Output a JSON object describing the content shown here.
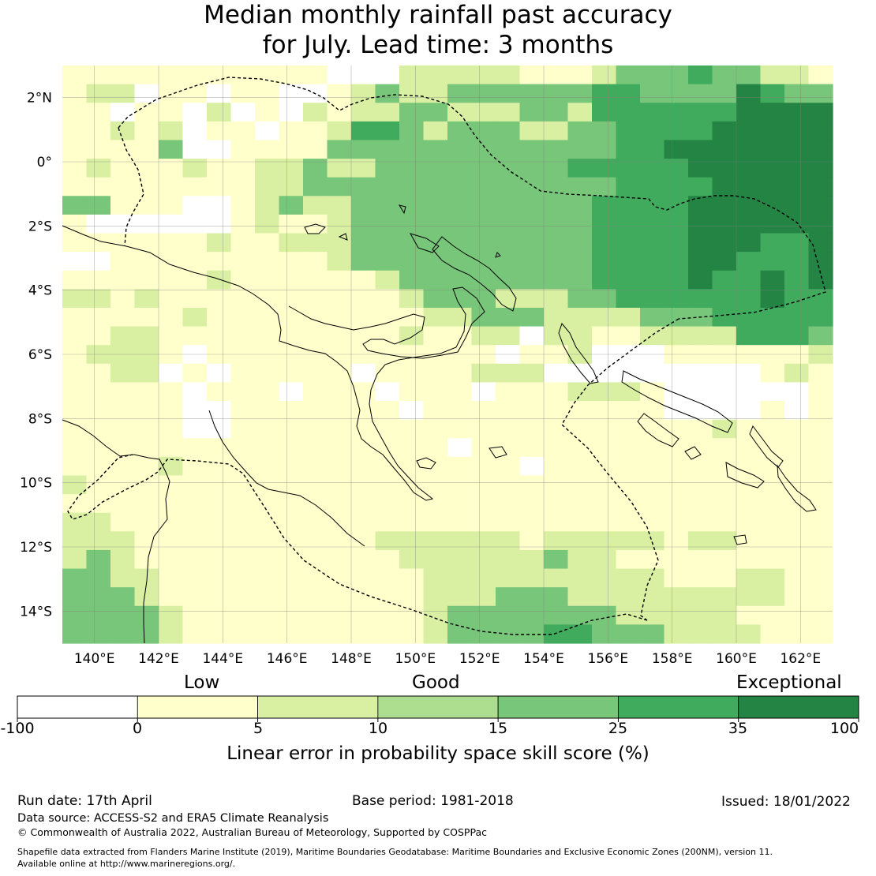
{
  "title": {
    "line1": "Median monthly rainfall past accuracy",
    "line2": "for July. Lead time: 3 months"
  },
  "map": {
    "lon_range": [
      139,
      163
    ],
    "lat_range": [
      -15,
      3
    ],
    "lon_ticks": [
      "140°E",
      "142°E",
      "144°E",
      "146°E",
      "148°E",
      "150°E",
      "152°E",
      "154°E",
      "156°E",
      "158°E",
      "160°E",
      "162°E"
    ],
    "lat_ticks": [
      "2°N",
      "0°",
      "2°S",
      "4°S",
      "6°S",
      "8°S",
      "10°S",
      "12°S",
      "14°S"
    ],
    "grid": true,
    "cell_size_deg": 0.8,
    "skill_grid": [
      "PPPPPQPPPPPWWWFFFFFPPPFGGGHGGFFP",
      "PFFWPPWPPWWPFGFFGGGGGGHHGGGGIHGG",
      "PQWQQWFWPWFQFFGGFFFGGFHHHHHHIIII",
      "PPFPFWPPWPPFHHGFGGGFFGGHHHHIIIII",
      "PQPPGWWPPPPGGGGGGGGGGGGHHIIIIIII",
      "QFPPQFPPFFGFFGGGGGGGGHHHHHIIIIII",
      "PPPPPPPQFFGGGGGGGGGGGGGHHHHIIIII",
      "GGPPPWWPFGFFGGGGGGGGGGHHHHIIIIII",
      "PWWWWWWPFPPFGGGGGGGGGGHHHHIIIIII",
      "QQQQQPFPPFFFGGGGGGGGGGHHHHIIIHHI",
      "WWQQQPPQQPPFGGGGGGGGGGHHHHIIHHHI",
      "QQPPQPFPPPPPPFGGGGGGGGHHHHIHHIHI",
      "FFPFPPPQPQPQPQFGGGFFFGGHHHHHHIHH",
      "PPPPPFPQPPPPPPPFFGGGFFFFGGGHHHHH",
      "PPFFPPPPPPPPPPFPPFFWFFPPFFFFHHHG",
      "PFFFPWPPPQPPPPPPPPWPPFWWWPQPPPPF",
      "PPFFWPWPPPPPWPPPPFFFWWWWWWWWWPFP",
      "QPPPPWPPPWQPPWPPPWPPPFFFPWWWWWWP",
      "PPPPPWWPPPPPPPWPPPQQPPPPPWWWWPWQ",
      "QPPPPWWPPPPPPPPPPPPPQQPPPPPFPPPP",
      "PPPPPPPPPPPPPPPPWPPPPPPPPPPPPPPQ",
      "QPPPFPPPPPPPPPPPPPPWPPQPPPPPPPPP",
      "FPPPPPPPPPPPPPPPPPPPPPPPPPPPPPPP",
      "PPPPPPPPPPPPPPPPPPPPPPPPPPPPPPPP",
      "FFPPPPPPPPPPPPPPPPPPPPPPPPPPPPPP",
      "FFFPPPPPPPPPPFFFFFFPFFFFFPFFPPPP",
      "FGFPPPPPPPPPPPFFFFFFGFFPPPPPPPPP",
      "GGFFPPPPPPPPPPPFFFFFFFFFFPPPFFPP",
      "GGGFPPPPPPPPPPPFFFGGGFFFFFFFFFPP",
      "GGGGFPPPPPPPPPPFGGGGGGGFFFFFPPPP",
      "GGGGFPPPPPPPPPPFGGGGHHGGGFFFFPPP"
    ]
  },
  "colorbar": {
    "headings": [
      "Low",
      "Good",
      "Exceptional"
    ],
    "boundaries": [
      "-100",
      "0",
      "5",
      "10",
      "15",
      "25",
      "35",
      "100"
    ],
    "colors": [
      "#ffffff",
      "#ffffcc",
      "#d9f0a3",
      "#addd8e",
      "#78c679",
      "#41ab5d",
      "#238443"
    ],
    "label": "Linear error in probability space skill score (%)"
  },
  "footer": {
    "run_date": "Run date: 17th April",
    "base_period": "Base period: 1981-2018",
    "issued": "Issued: 18/01/2022",
    "data_source": "Data source: ACCESS-S2 and ERA5 Climate Reanalysis",
    "copyright": "© Commonwealth of Australia 2022, Australian Bureau of Meteorology, Supported by COSPPac",
    "shapefile_line1": "Shapefile data extracted from Flanders Marine Institute (2019), Maritime Boundaries Geodatabase: Maritime Boundaries and Exclusive Economic Zones (200NM), version 11.",
    "shapefile_line2": "Available online at http://www.marineregions.org/."
  }
}
